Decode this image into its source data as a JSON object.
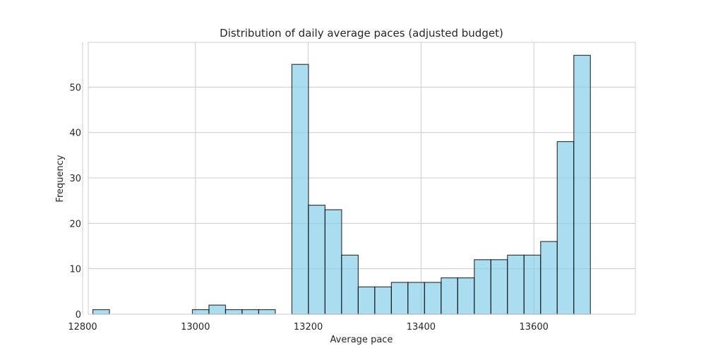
{
  "chart_data": {
    "type": "bar",
    "title": "Distribution of daily average paces (adjusted budget)",
    "xlabel": "Average pace",
    "ylabel": "Frequency",
    "xlim": [
      12810,
      13780
    ],
    "ylim": [
      0,
      59.85
    ],
    "x_ticks": [
      12800,
      13000,
      13200,
      13400,
      13600
    ],
    "y_ticks": [
      0,
      10,
      20,
      30,
      40,
      50
    ],
    "grid": true,
    "bar_color": "#87CEEB",
    "bar_edge_color": "#000000",
    "bins": [
      {
        "x0": 12818.2,
        "x1": 12847.6,
        "count": 1
      },
      {
        "x0": 12847.6,
        "x1": 12877.0,
        "count": 0
      },
      {
        "x0": 12877.0,
        "x1": 12906.4,
        "count": 0
      },
      {
        "x0": 12906.4,
        "x1": 12935.8,
        "count": 0
      },
      {
        "x0": 12935.8,
        "x1": 12965.2,
        "count": 0
      },
      {
        "x0": 12965.2,
        "x1": 12994.6,
        "count": 0
      },
      {
        "x0": 12994.6,
        "x1": 13024.0,
        "count": 1
      },
      {
        "x0": 13024.0,
        "x1": 13053.4,
        "count": 2
      },
      {
        "x0": 13053.4,
        "x1": 13082.8,
        "count": 1
      },
      {
        "x0": 13082.8,
        "x1": 13112.2,
        "count": 1
      },
      {
        "x0": 13112.2,
        "x1": 13141.6,
        "count": 1
      },
      {
        "x0": 13141.6,
        "x1": 13171.0,
        "count": 0
      },
      {
        "x0": 13171.0,
        "x1": 13200.4,
        "count": 55
      },
      {
        "x0": 13200.4,
        "x1": 13229.8,
        "count": 24
      },
      {
        "x0": 13229.8,
        "x1": 13259.2,
        "count": 23
      },
      {
        "x0": 13259.2,
        "x1": 13288.6,
        "count": 13
      },
      {
        "x0": 13288.6,
        "x1": 13318.0,
        "count": 6
      },
      {
        "x0": 13318.0,
        "x1": 13347.4,
        "count": 6
      },
      {
        "x0": 13347.4,
        "x1": 13376.8,
        "count": 7
      },
      {
        "x0": 13376.8,
        "x1": 13406.2,
        "count": 7
      },
      {
        "x0": 13406.2,
        "x1": 13435.6,
        "count": 7
      },
      {
        "x0": 13435.6,
        "x1": 13465.0,
        "count": 8
      },
      {
        "x0": 13465.0,
        "x1": 13494.4,
        "count": 8
      },
      {
        "x0": 13494.4,
        "x1": 13523.8,
        "count": 12
      },
      {
        "x0": 13523.8,
        "x1": 13553.2,
        "count": 12
      },
      {
        "x0": 13553.2,
        "x1": 13582.6,
        "count": 13
      },
      {
        "x0": 13582.6,
        "x1": 13612.0,
        "count": 13
      },
      {
        "x0": 13612.0,
        "x1": 13641.4,
        "count": 16
      },
      {
        "x0": 13641.4,
        "x1": 13670.8,
        "count": 38
      },
      {
        "x0": 13670.8,
        "x1": 13700.2,
        "count": 57
      }
    ]
  }
}
